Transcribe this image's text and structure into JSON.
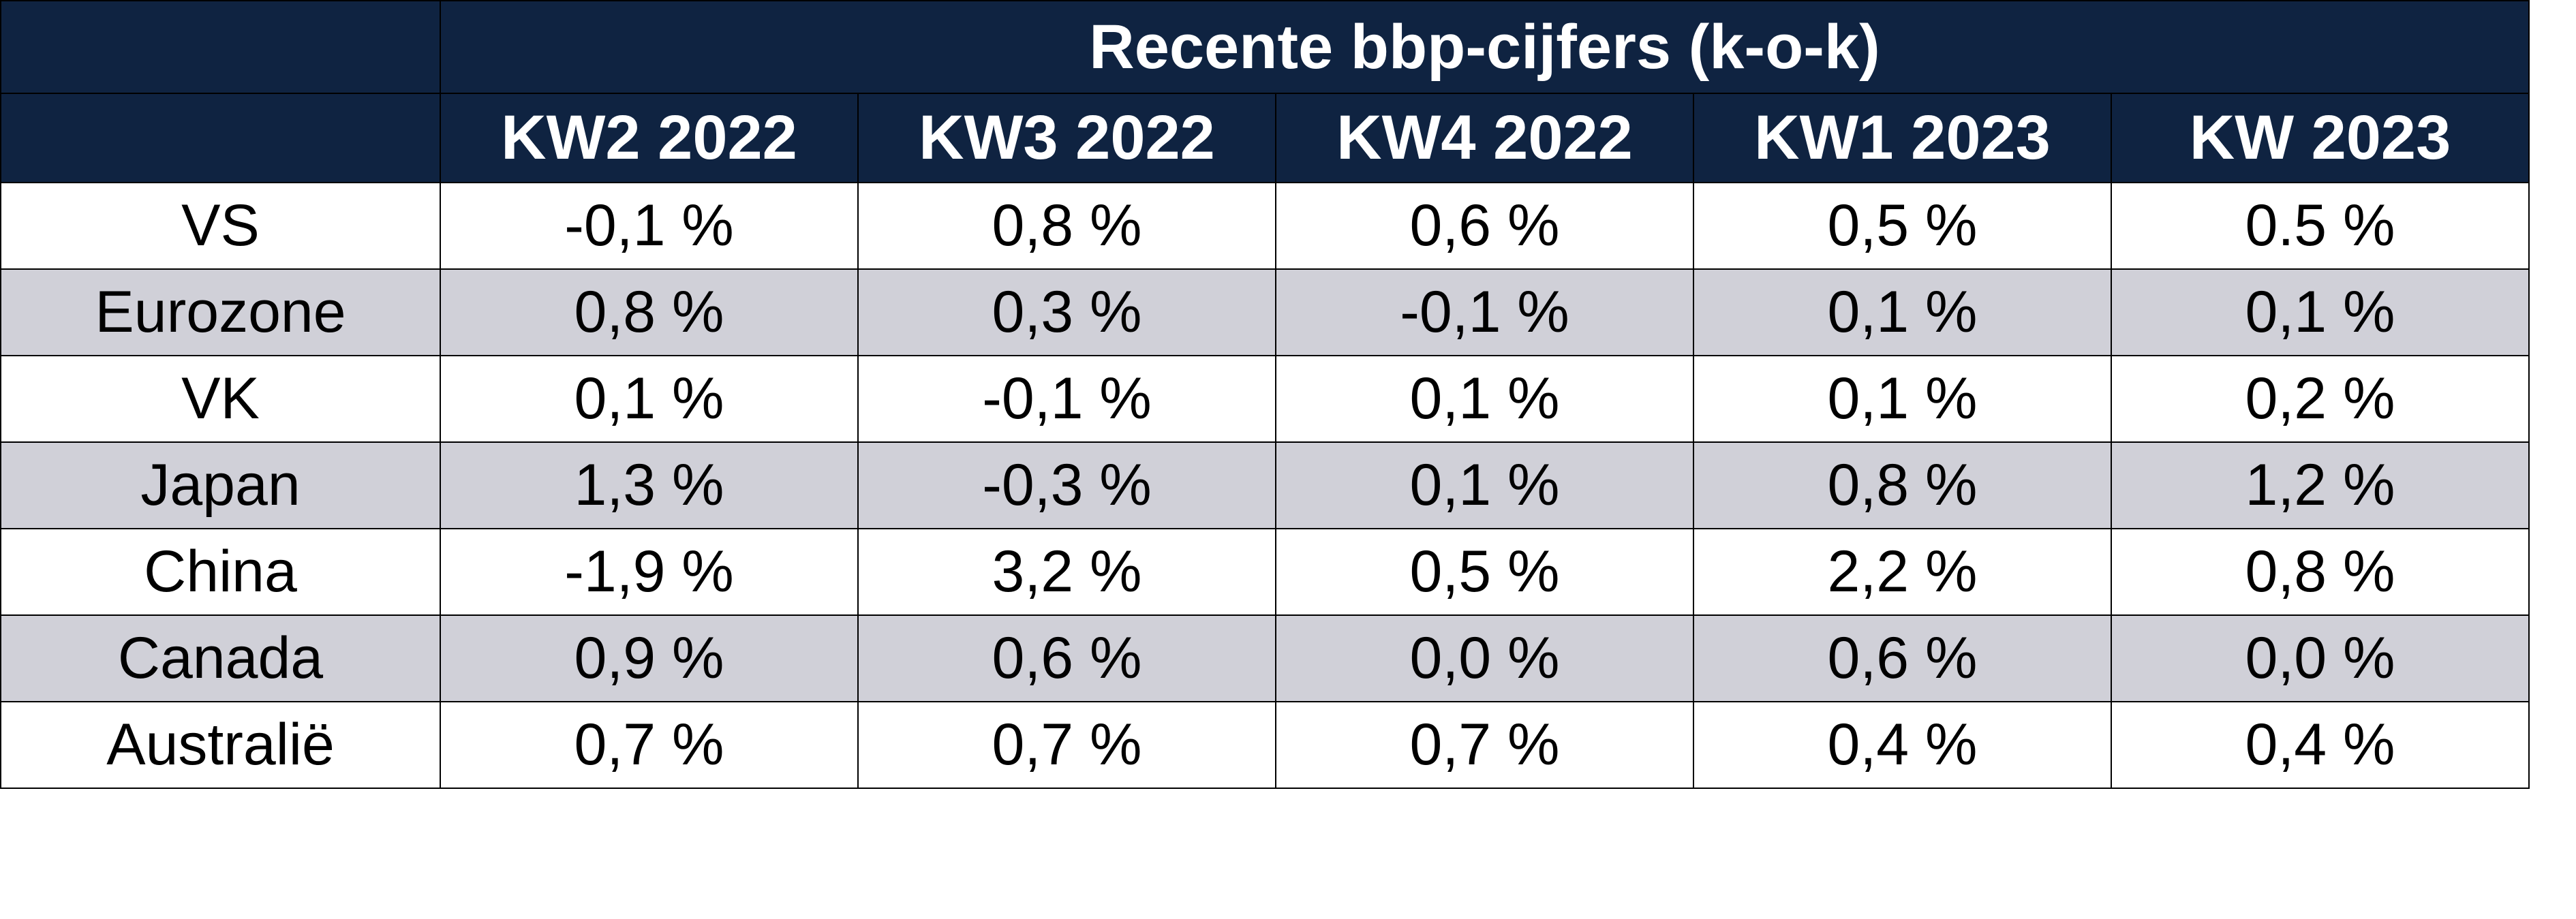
{
  "table": {
    "title": "Recente bbp-cijfers (k-o-k)",
    "columns": [
      "KW2 2022",
      "KW3 2022",
      "KW4 2022",
      "KW1 2023",
      "KW 2023"
    ],
    "rows": [
      {
        "country": "VS",
        "values": [
          "-0,1 %",
          "0,8 %",
          "0,6 %",
          "0,5 %",
          "0.5 %"
        ]
      },
      {
        "country": "Eurozone",
        "values": [
          "0,8 %",
          "0,3 %",
          "-0,1 %",
          "0,1 %",
          "0,1 %"
        ]
      },
      {
        "country": "VK",
        "values": [
          "0,1 %",
          "-0,1 %",
          "0,1 %",
          "0,1 %",
          "0,2 %"
        ]
      },
      {
        "country": "Japan",
        "values": [
          "1,3 %",
          "-0,3 %",
          "0,1 %",
          "0,8 %",
          "1,2 %"
        ]
      },
      {
        "country": "China",
        "values": [
          "-1,9 %",
          "3,2 %",
          "0,5 %",
          "2,2 %",
          "0,8 %"
        ]
      },
      {
        "country": "Canada",
        "values": [
          "0,9 %",
          "0,6 %",
          "0,0 %",
          "0,6 %",
          "0,0 %"
        ]
      },
      {
        "country": "Australië",
        "values": [
          "0,7 %",
          "0,7 %",
          "0,7 %",
          "0,4 %",
          "0,4 %"
        ]
      }
    ],
    "colors": {
      "header_bg": "#0f2341",
      "header_text": "#ffffff",
      "shaded_row": "#d0d0d8",
      "border": "#000000"
    }
  }
}
